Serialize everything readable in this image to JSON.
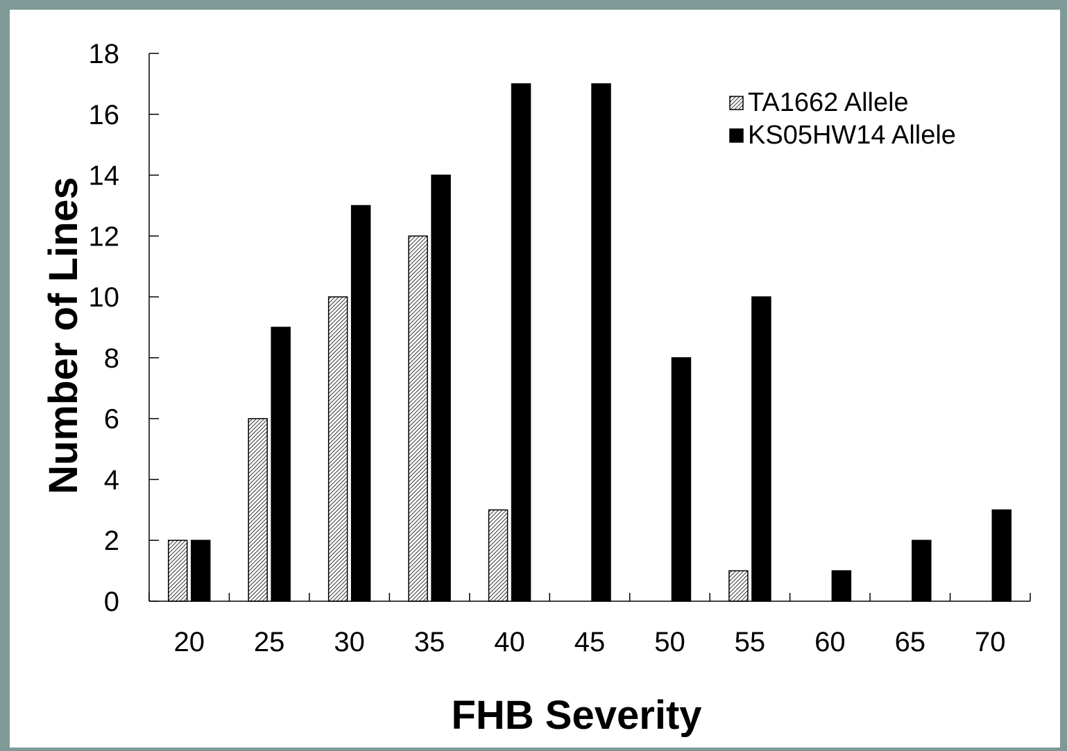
{
  "colors": {
    "background": "#7f9a96",
    "panel": "#ffffff",
    "ink": "#000000"
  },
  "chart_data": {
    "type": "bar",
    "title": "",
    "xlabel": "FHB Severity",
    "ylabel": "Number of Lines",
    "categories": [
      "20",
      "25",
      "30",
      "35",
      "40",
      "45",
      "50",
      "55",
      "60",
      "65",
      "70"
    ],
    "yticks": [
      "0",
      "2",
      "4",
      "6",
      "8",
      "10",
      "12",
      "14",
      "16",
      "18"
    ],
    "ylim": [
      0,
      18
    ],
    "grid": false,
    "legend_position": "top-right",
    "series": [
      {
        "name": "TA1662 Allele",
        "values": [
          2,
          6,
          10,
          12,
          3,
          0,
          0,
          1,
          0,
          0,
          0
        ],
        "fill": "hatched"
      },
      {
        "name": "KS05HW14 Allele",
        "values": [
          2,
          9,
          13,
          14,
          17,
          17,
          8,
          10,
          1,
          2,
          3
        ],
        "fill": "solid"
      }
    ]
  }
}
